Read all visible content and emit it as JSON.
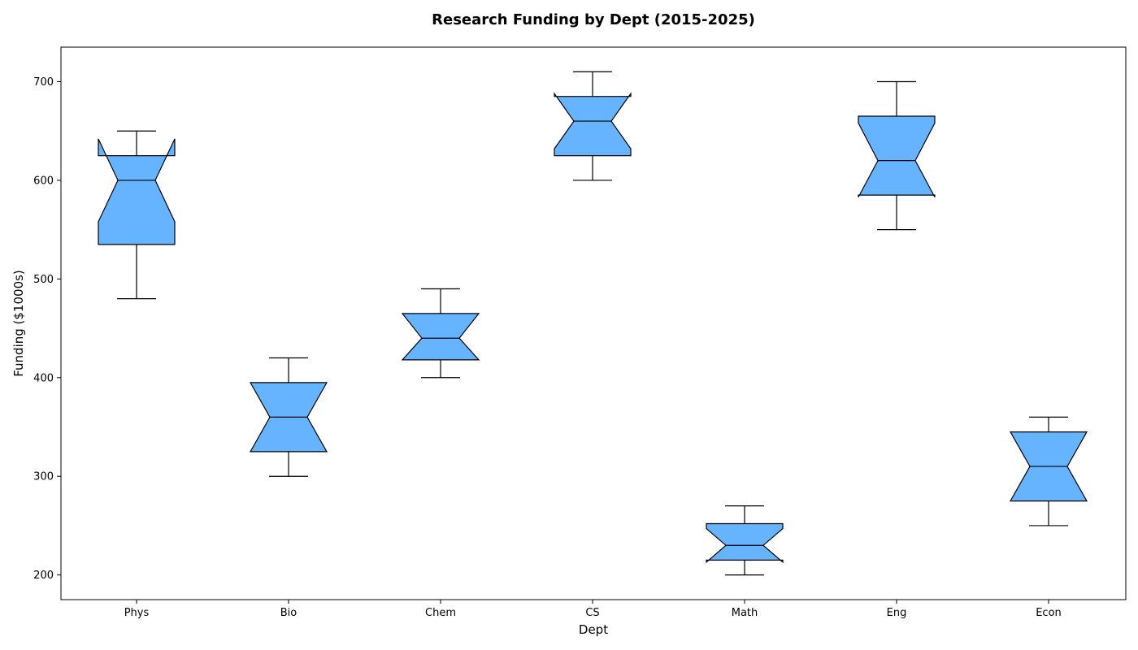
{
  "chart_data": {
    "type": "box",
    "title": "Research Funding by Dept (2015-2025)",
    "xlabel": "Dept",
    "ylabel": "Funding ($1000s)",
    "ylim": [
      175,
      735
    ],
    "yticks": [
      200,
      300,
      400,
      500,
      600,
      700
    ],
    "notched": true,
    "grid": false,
    "box_color": "#66b3ff",
    "edge_color": "#000000",
    "categories": [
      "Phys",
      "Bio",
      "Chem",
      "CS",
      "Math",
      "Eng",
      "Econ"
    ],
    "boxes": [
      {
        "category": "Phys",
        "whisker_low": 480,
        "q1": 535,
        "median": 600,
        "q3": 625,
        "whisker_high": 650,
        "notch_low": 558,
        "notch_high": 642
      },
      {
        "category": "Bio",
        "whisker_low": 300,
        "q1": 325,
        "median": 360,
        "q3": 395,
        "whisker_high": 420,
        "notch_low": 325,
        "notch_high": 395
      },
      {
        "category": "Chem",
        "whisker_low": 400,
        "q1": 418,
        "median": 440,
        "q3": 465,
        "whisker_high": 490,
        "notch_low": 418,
        "notch_high": 465
      },
      {
        "category": "CS",
        "whisker_low": 600,
        "q1": 625,
        "median": 660,
        "q3": 685,
        "whisker_high": 710,
        "notch_low": 632,
        "notch_high": 688
      },
      {
        "category": "Math",
        "whisker_low": 200,
        "q1": 215,
        "median": 230,
        "q3": 252,
        "whisker_high": 270,
        "notch_low": 213,
        "notch_high": 247
      },
      {
        "category": "Eng",
        "whisker_low": 550,
        "q1": 585,
        "median": 620,
        "q3": 665,
        "whisker_high": 700,
        "notch_low": 583,
        "notch_high": 658
      },
      {
        "category": "Econ",
        "whisker_low": 250,
        "q1": 275,
        "median": 310,
        "q3": 345,
        "whisker_high": 360,
        "notch_low": 275,
        "notch_high": 345
      }
    ]
  }
}
